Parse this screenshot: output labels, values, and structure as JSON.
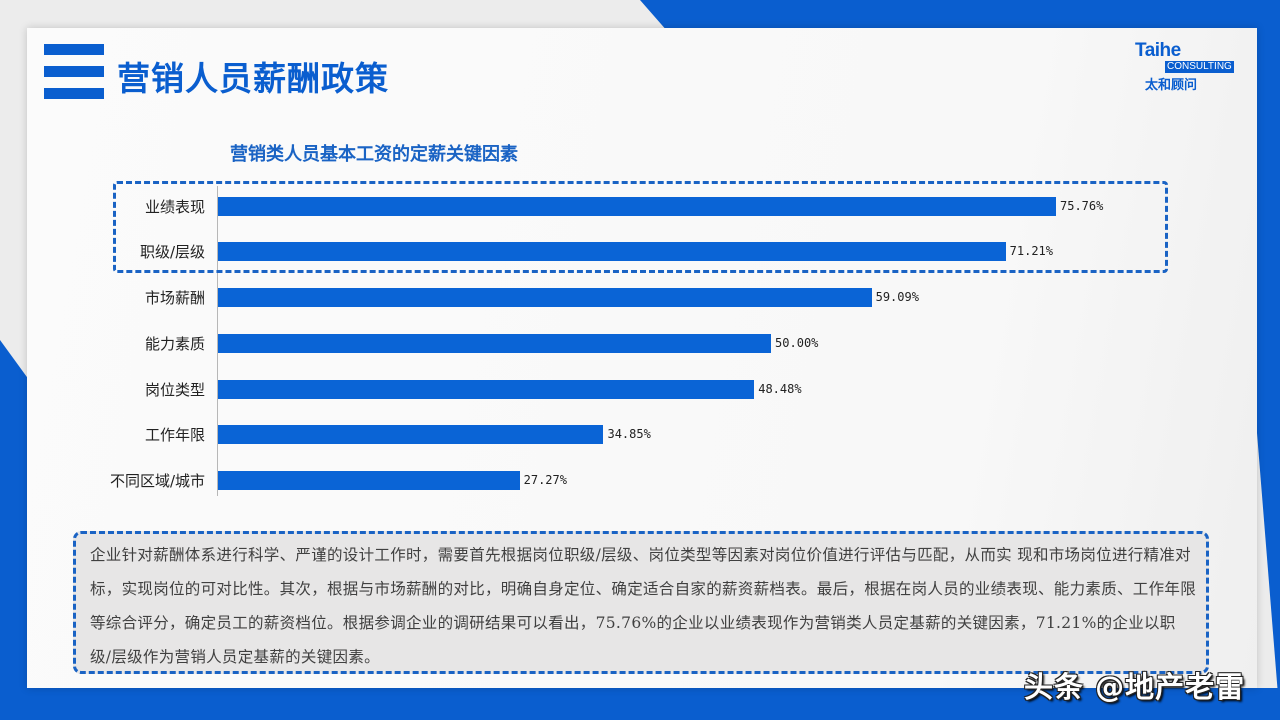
{
  "slide": {
    "title": "营销人员薪酬政策",
    "logo": {
      "brand": "Taihe",
      "sub": "CONSULTING",
      "cn": "太和顾问"
    },
    "summary": "企业针对薪酬体系进行科学、严谨的设计工作时，需要首先根据岗位职级/层级、岗位类型等因素对岗位价值进行评估与匹配，从而实 现和市场岗位进行精准对标，实现岗位的可对比性。其次，根据与市场薪酬的对比，明确自身定位、确定适合自家的薪资薪档表。最后，根据在岗人员的业绩表现、能力素质、工作年限等综合评分，确定员工的薪资档位。根据参调企业的调研结果可以看出，75.76%的企业以业绩表现作为营销类人员定基薪的关键因素，71.21%的企业以职级/层级作为营销人员定基薪的关键因素。",
    "watermark": "头条 @地产老雷"
  },
  "colors": {
    "accent": "#0a5ecf",
    "bar": "#0a64d6",
    "highlight_border": "#1a63c4"
  },
  "chart_data": {
    "type": "bar",
    "orientation": "horizontal",
    "title": "营销类人员基本工资的定薪关键因素",
    "xlabel": "",
    "ylabel": "",
    "categories": [
      "业绩表现",
      "职级/层级",
      "市场薪酬",
      "能力素质",
      "岗位类型",
      "工作年限",
      "不同区域/城市"
    ],
    "values": [
      75.76,
      71.21,
      59.09,
      50.0,
      48.48,
      34.85,
      27.27
    ],
    "value_labels": [
      "75.76%",
      "71.21%",
      "59.09%",
      "50.00%",
      "48.48%",
      "34.85%",
      "27.27%"
    ],
    "unit": "%",
    "grid": false,
    "legend": null,
    "highlighted_categories": [
      "业绩表现",
      "职级/层级"
    ]
  }
}
